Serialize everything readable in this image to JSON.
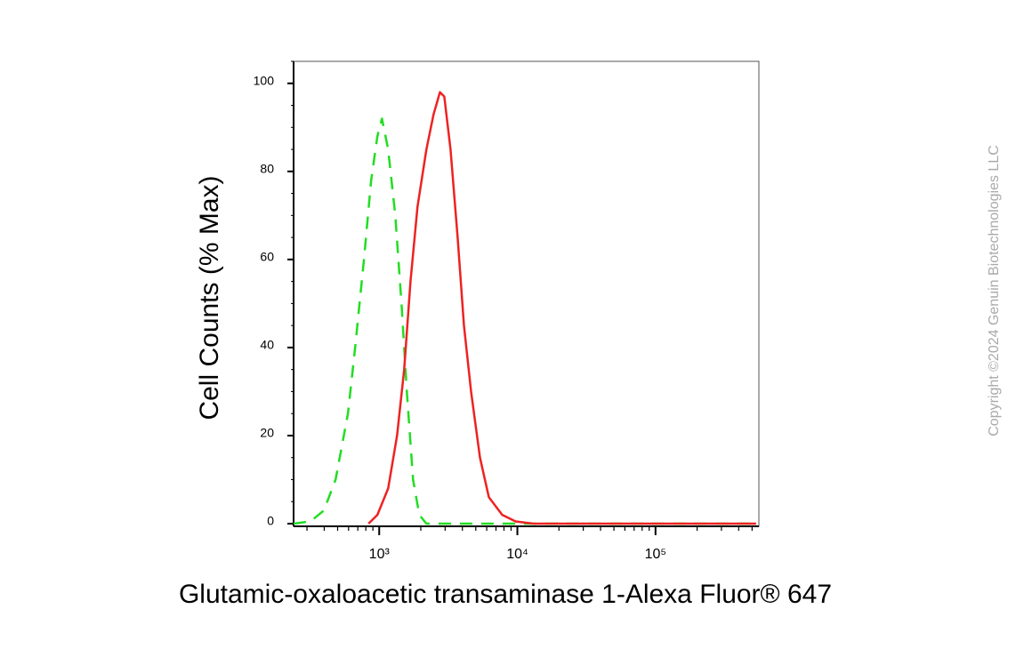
{
  "chart_data": {
    "type": "line",
    "ylabel": "Cell Counts (% Max)",
    "xlabel": "Glutamic-oxaloacetic transaminase 1-Alexa Fluor® 647",
    "watermark": "Copyright ©2024 Genuin Biotechnologies LLC",
    "xscale": "log",
    "xlim": [
      240,
      560000
    ],
    "ylim": [
      0,
      105
    ],
    "xticks": [
      {
        "value": 1000,
        "label": "10³"
      },
      {
        "value": 10000,
        "label": "10⁴"
      },
      {
        "value": 100000,
        "label": "10⁵"
      }
    ],
    "yticks": [
      0,
      20,
      40,
      60,
      80,
      100
    ],
    "series": [
      {
        "color": "#22dd22",
        "dash": true,
        "x": [
          240,
          318,
          398,
          483,
          594,
          670,
          776,
          875,
          970,
          1046,
          1160,
          1307,
          1450,
          1585,
          1758,
          1950,
          2197,
          2958,
          535000
        ],
        "values": [
          0,
          0.5,
          3,
          10,
          25,
          40,
          60,
          78,
          88,
          92,
          85,
          70,
          50,
          30,
          10,
          2,
          0,
          0,
          0
        ]
      },
      {
        "color": "#ee2222",
        "dash": false,
        "x": [
          837,
          970,
          1160,
          1346,
          1517,
          1683,
          1893,
          2197,
          2477,
          2750,
          2958,
          3281,
          3697,
          4103,
          4622,
          5360,
          6218,
          7770,
          9706,
          13060,
          535000
        ],
        "values": [
          0,
          2,
          8,
          20,
          35,
          55,
          72,
          85,
          93,
          98,
          97,
          85,
          65,
          45,
          30,
          15,
          6,
          2,
          0.5,
          0,
          0
        ]
      }
    ]
  }
}
